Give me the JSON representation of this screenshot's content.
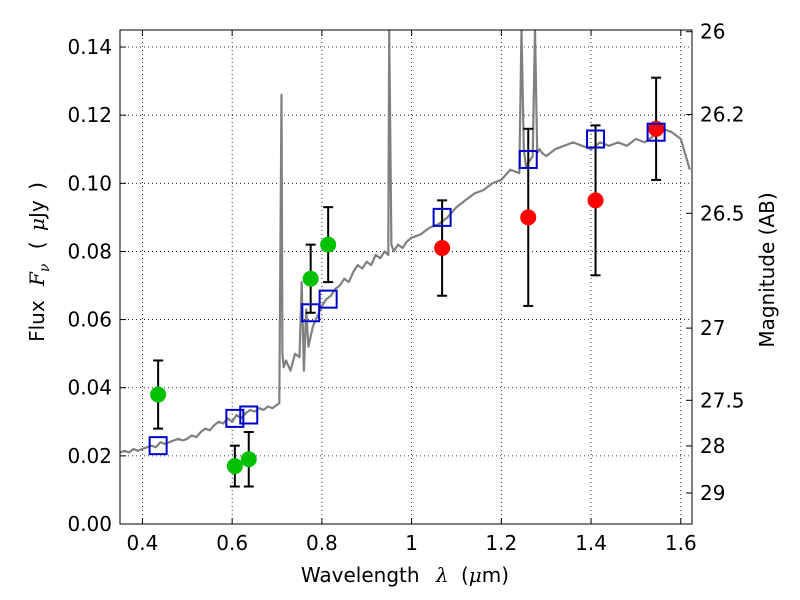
{
  "chart_data": {
    "type": "scatter",
    "xlabel": "Wavelength λ (μm)",
    "xlabel_parts": {
      "word": "Wavelength",
      "symbol": "λ",
      "unit_open": "(",
      "unit_mu": "μ",
      "unit_rest": "m)"
    },
    "ylabel": "Flux F_ν ( μJy )",
    "ylabel_parts": {
      "word": "Flux",
      "symbol": "F",
      "sub": "ν",
      "open": "(",
      "mu": "μ",
      "rest": "Jy",
      "close": ")"
    },
    "y2label": "Magnitude (AB)",
    "xlim": [
      0.35,
      1.625
    ],
    "ylim": [
      0.0,
      0.145
    ],
    "grid": true,
    "x_ticks": [
      {
        "value": 0.4,
        "label": "0.4"
      },
      {
        "value": 0.6,
        "label": "0.6"
      },
      {
        "value": 0.8,
        "label": "0.8"
      },
      {
        "value": 1.0,
        "label": "1"
      },
      {
        "value": 1.2,
        "label": "1.2"
      },
      {
        "value": 1.4,
        "label": "1.4"
      },
      {
        "value": 1.6,
        "label": "1.6"
      }
    ],
    "y_ticks": [
      {
        "value": 0.0,
        "label": "0.00"
      },
      {
        "value": 0.02,
        "label": "0.02"
      },
      {
        "value": 0.04,
        "label": "0.04"
      },
      {
        "value": 0.06,
        "label": "0.06"
      },
      {
        "value": 0.08,
        "label": "0.08"
      },
      {
        "value": 0.1,
        "label": "0.10"
      },
      {
        "value": 0.12,
        "label": "0.12"
      },
      {
        "value": 0.14,
        "label": "0.14"
      }
    ],
    "mag_ticks": [
      {
        "label": "26",
        "flux": 0.1445
      },
      {
        "label": "26.2",
        "flux": 0.1202
      },
      {
        "label": "26.5",
        "flux": 0.0912
      },
      {
        "label": "27",
        "flux": 0.0575
      },
      {
        "label": "27.5",
        "flux": 0.0363
      },
      {
        "label": "28",
        "flux": 0.0229
      },
      {
        "label": "29",
        "flux": 0.0091
      }
    ],
    "model_spectrum": {
      "name": "model SED",
      "color": "#808080",
      "x": [
        0.35,
        0.36,
        0.37,
        0.38,
        0.39,
        0.4,
        0.41,
        0.42,
        0.43,
        0.44,
        0.45,
        0.46,
        0.47,
        0.48,
        0.49,
        0.5,
        0.51,
        0.52,
        0.53,
        0.54,
        0.55,
        0.56,
        0.57,
        0.58,
        0.59,
        0.6,
        0.61,
        0.62,
        0.63,
        0.64,
        0.65,
        0.66,
        0.67,
        0.68,
        0.69,
        0.7,
        0.705,
        0.71,
        0.712,
        0.715,
        0.72,
        0.73,
        0.74,
        0.75,
        0.755,
        0.76,
        0.765,
        0.77,
        0.78,
        0.79,
        0.8,
        0.81,
        0.82,
        0.83,
        0.84,
        0.85,
        0.86,
        0.87,
        0.88,
        0.89,
        0.9,
        0.91,
        0.92,
        0.93,
        0.94,
        0.948,
        0.95,
        0.955,
        0.96,
        0.97,
        0.98,
        0.99,
        1.0,
        1.02,
        1.04,
        1.06,
        1.08,
        1.1,
        1.12,
        1.14,
        1.16,
        1.18,
        1.2,
        1.22,
        1.24,
        1.245,
        1.25,
        1.255,
        1.26,
        1.27,
        1.275,
        1.28,
        1.285,
        1.29,
        1.3,
        1.32,
        1.34,
        1.36,
        1.38,
        1.4,
        1.42,
        1.44,
        1.46,
        1.48,
        1.5,
        1.52,
        1.54,
        1.56,
        1.58,
        1.6,
        1.62
      ],
      "y": [
        0.021,
        0.0215,
        0.021,
        0.022,
        0.0215,
        0.022,
        0.0225,
        0.023,
        0.0225,
        0.024,
        0.0235,
        0.024,
        0.0245,
        0.025,
        0.0245,
        0.025,
        0.026,
        0.0255,
        0.027,
        0.028,
        0.0275,
        0.029,
        0.03,
        0.0295,
        0.031,
        0.03,
        0.032,
        0.031,
        0.0325,
        0.0335,
        0.033,
        0.034,
        0.0335,
        0.0345,
        0.034,
        0.035,
        0.0355,
        0.126,
        0.05,
        0.046,
        0.048,
        0.045,
        0.05,
        0.049,
        0.071,
        0.045,
        0.063,
        0.052,
        0.058,
        0.061,
        0.064,
        0.066,
        0.067,
        0.069,
        0.07,
        0.072,
        0.071,
        0.074,
        0.076,
        0.075,
        0.077,
        0.076,
        0.079,
        0.078,
        0.08,
        0.079,
        0.145,
        0.082,
        0.08,
        0.082,
        0.081,
        0.083,
        0.084,
        0.085,
        0.087,
        0.088,
        0.09,
        0.093,
        0.095,
        0.097,
        0.098,
        0.1,
        0.101,
        0.104,
        0.103,
        0.145,
        0.11,
        0.105,
        0.106,
        0.108,
        0.145,
        0.109,
        0.11,
        0.109,
        0.108,
        0.11,
        0.111,
        0.112,
        0.111,
        0.11,
        0.112,
        0.111,
        0.112,
        0.111,
        0.113,
        0.112,
        0.114,
        0.116,
        0.115,
        0.113,
        0.104
      ]
    },
    "series": [
      {
        "name": "green points",
        "color": "#00c000",
        "marker": "circle",
        "points": [
          {
            "x": 0.435,
            "y": 0.038,
            "err": 0.01
          },
          {
            "x": 0.606,
            "y": 0.017,
            "err": 0.006
          },
          {
            "x": 0.637,
            "y": 0.019,
            "err": 0.008
          },
          {
            "x": 0.775,
            "y": 0.072,
            "err": 0.01
          },
          {
            "x": 0.814,
            "y": 0.082,
            "err": 0.011
          }
        ]
      },
      {
        "name": "red points",
        "color": "#ff0000",
        "marker": "circle",
        "points": [
          {
            "x": 1.068,
            "y": 0.081,
            "err": 0.014
          },
          {
            "x": 1.26,
            "y": 0.09,
            "err": 0.026
          },
          {
            "x": 1.41,
            "y": 0.095,
            "err": 0.022
          },
          {
            "x": 1.545,
            "y": 0.116,
            "err": 0.015
          }
        ]
      },
      {
        "name": "model photometry",
        "color": "#0000cc",
        "marker": "open-square",
        "points": [
          {
            "x": 0.435,
            "y": 0.023
          },
          {
            "x": 0.606,
            "y": 0.031
          },
          {
            "x": 0.637,
            "y": 0.032
          },
          {
            "x": 0.775,
            "y": 0.062
          },
          {
            "x": 0.814,
            "y": 0.066
          },
          {
            "x": 1.068,
            "y": 0.09
          },
          {
            "x": 1.26,
            "y": 0.107
          },
          {
            "x": 1.41,
            "y": 0.113
          },
          {
            "x": 1.545,
            "y": 0.115
          }
        ]
      }
    ]
  }
}
